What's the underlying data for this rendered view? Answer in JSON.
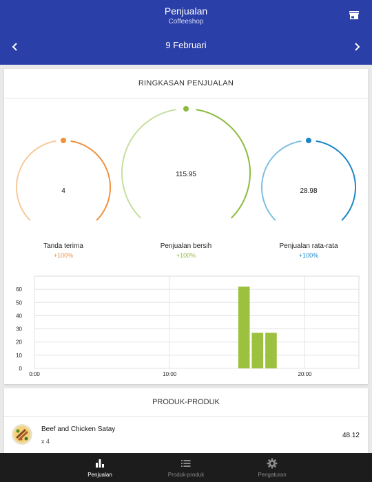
{
  "header": {
    "title": "Penjualan",
    "subtitle": "Coffeeshop",
    "date": "9  Februari",
    "store_icon": "store-icon",
    "prev_icon": "chevron-left-icon",
    "next_icon": "chevron-right-icon"
  },
  "summary": {
    "title": "RINGKASAN PENJUALAN",
    "gauges": [
      {
        "value": "4",
        "label": "Tanda terima",
        "change": "+100%",
        "color": "#f0913e",
        "light": "#f7c99a"
      },
      {
        "value": "115.95",
        "label": "Penjualan bersih",
        "change": "+100%",
        "color": "#8cbb3b",
        "light": "#c6de9e"
      },
      {
        "value": "28.98",
        "label": "Penjualan rata-rata",
        "change": "+100%",
        "color": "#1b86c6",
        "light": "#7fbfe3"
      }
    ]
  },
  "chart_data": {
    "type": "bar",
    "x": [
      15,
      16,
      17
    ],
    "values": [
      62,
      27,
      27
    ],
    "xlim": [
      0,
      24
    ],
    "ylim": [
      0,
      70
    ],
    "yticks": [
      "0",
      "10",
      "20",
      "30",
      "40",
      "50",
      "60"
    ],
    "xticks": [
      "0:00",
      "10:00",
      "20:00"
    ],
    "bar_color": "#9bc13f",
    "grid": true
  },
  "products": {
    "title": "PRODUK-PRODUK",
    "items": [
      {
        "name": "Beef and Chicken Satay",
        "qty": "x 4",
        "total": "48.12"
      }
    ]
  },
  "nav": {
    "items": [
      {
        "label": "Penjualan",
        "icon": "bar-chart-icon",
        "active": true
      },
      {
        "label": "Produk-produk",
        "icon": "list-icon",
        "active": false
      },
      {
        "label": "Pengaturan",
        "icon": "gear-icon",
        "active": false
      }
    ]
  }
}
